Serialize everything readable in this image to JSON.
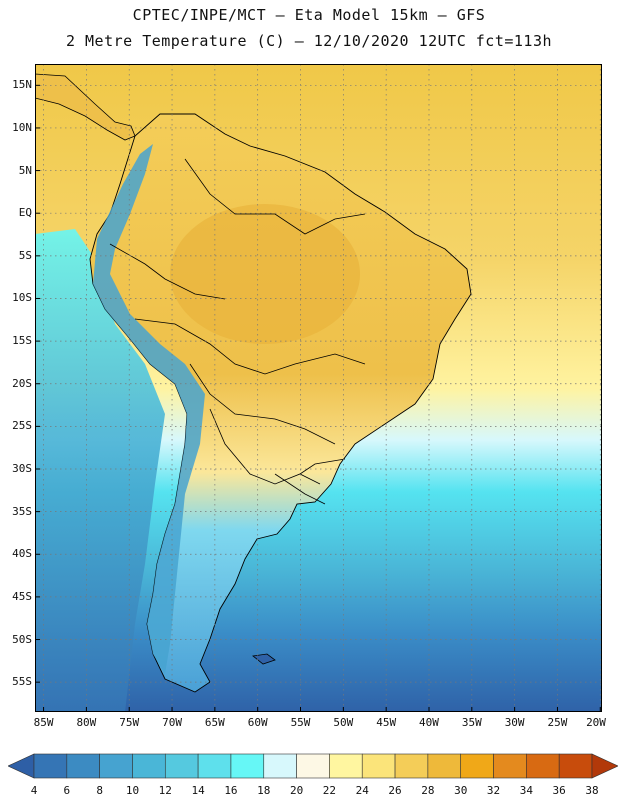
{
  "header": {
    "title_line1": "CPTEC/INPE/MCT –  Eta Model 15km – GFS",
    "title_line2": "2 Metre Temperature (C) – 12/10/2020 12UTC fct=113h"
  },
  "map": {
    "lat_labels": [
      "15N",
      "10N",
      "5N",
      "EQ",
      "5S",
      "10S",
      "15S",
      "20S",
      "25S",
      "30S",
      "35S",
      "40S",
      "45S",
      "50S",
      "55S"
    ],
    "lat_values": [
      15,
      10,
      5,
      0,
      -5,
      -10,
      -15,
      -20,
      -25,
      -30,
      -35,
      -40,
      -45,
      -50,
      -55
    ],
    "lon_labels": [
      "85W",
      "80W",
      "75W",
      "70W",
      "65W",
      "60W",
      "55W",
      "50W",
      "45W",
      "40W",
      "35W",
      "30W",
      "25W",
      "20W"
    ],
    "lon_values": [
      -85,
      -80,
      -75,
      -70,
      -65,
      -60,
      -55,
      -50,
      -45,
      -40,
      -35,
      -30,
      -25,
      -20
    ],
    "extent": {
      "lon_min": -86,
      "lon_max": -19.8,
      "lat_min": -58.5,
      "lat_max": 17.5
    },
    "gridlines": "dotted",
    "colors": {
      "ocean_warm": "#f0c848",
      "ocean_mid": "#fff3a0",
      "ocean_cool": "#55e3f0",
      "ocean_cold": "#3a8cc7",
      "ocean_coldest": "#2f62a8",
      "land_hot": "#e8b23a",
      "land_warm": "#f3cd55",
      "land_mild": "#fbe79a",
      "land_cool": "#7fd8ef",
      "andes": "#5ab8e0",
      "boundary": "#000000"
    }
  },
  "colorbar": {
    "labels": [
      "4",
      "6",
      "8",
      "10",
      "12",
      "14",
      "16",
      "18",
      "20",
      "22",
      "24",
      "26",
      "28",
      "30",
      "32",
      "34",
      "36",
      "38"
    ],
    "colors": [
      "#2e5fa6",
      "#3575b5",
      "#3c8bc2",
      "#46a3d0",
      "#4ab6d7",
      "#55c9df",
      "#5ee0ec",
      "#66f7f6",
      "#d7f8fc",
      "#fdf8e5",
      "#fff6a0",
      "#fbe47a",
      "#f4cd58",
      "#eeb93a",
      "#f0a818",
      "#e48a1e",
      "#d86a12",
      "#c84c0c",
      "#b2390a"
    ]
  }
}
